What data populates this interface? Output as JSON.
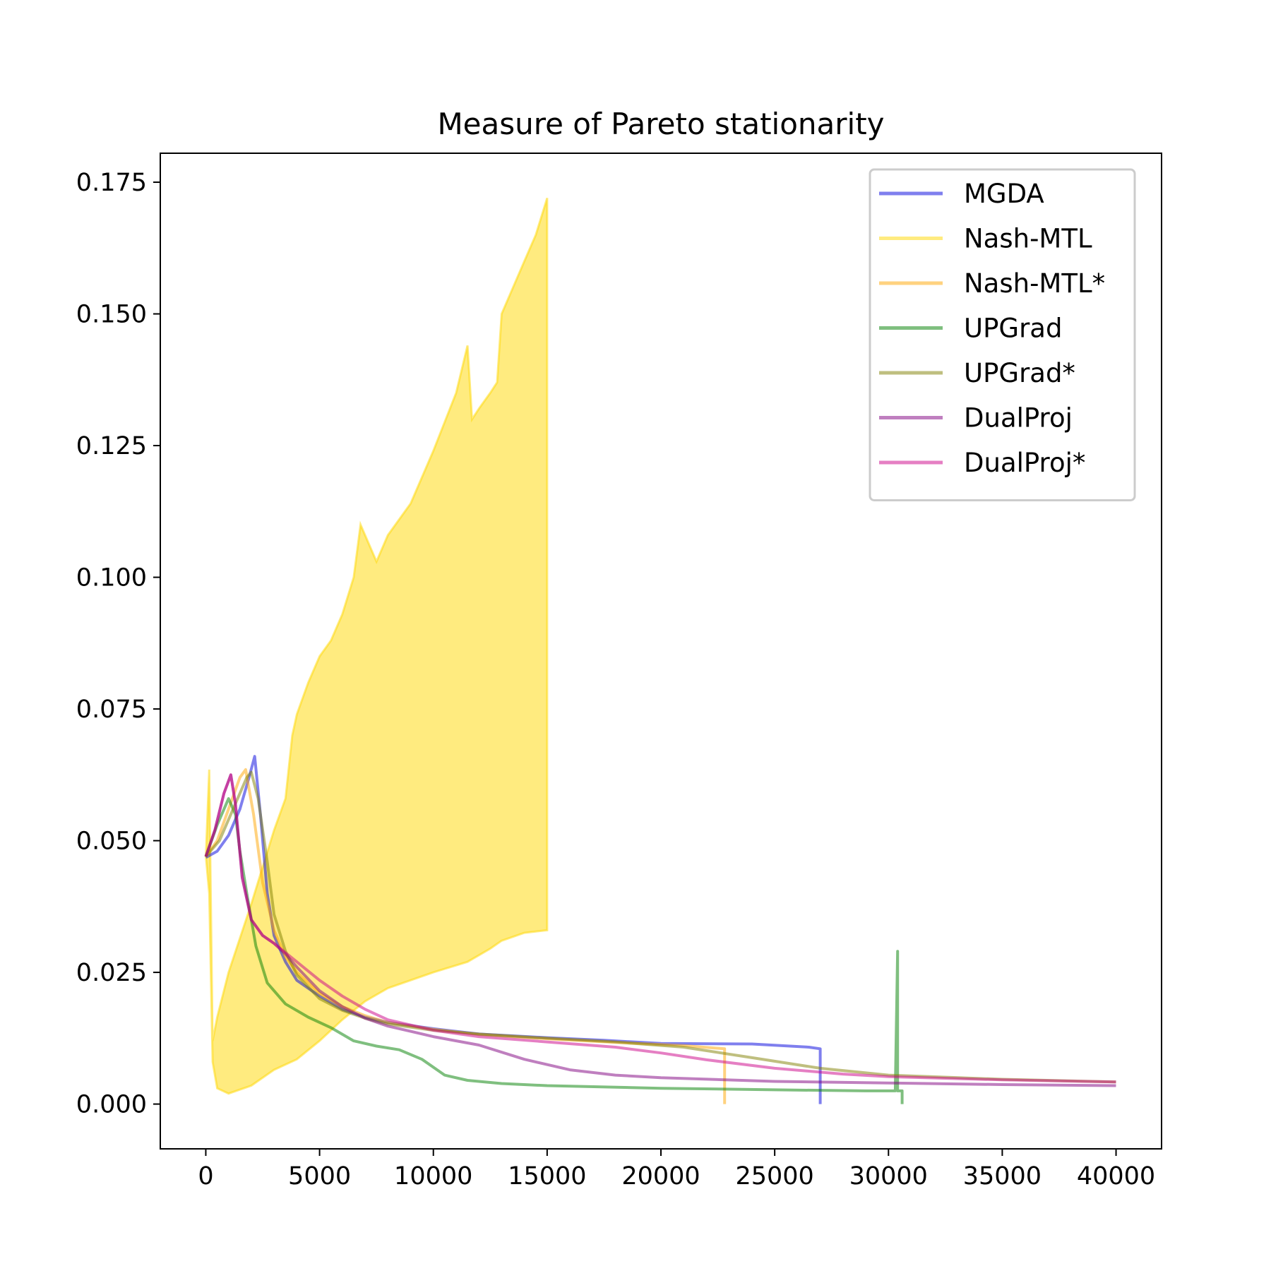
{
  "chart_data": {
    "type": "line",
    "title": "Measure of Pareto stationarity",
    "xlabel": "",
    "ylabel": "",
    "xlim": [
      -2000,
      42000
    ],
    "ylim": [
      -0.0085,
      0.1805
    ],
    "xticks": [
      0,
      5000,
      10000,
      15000,
      20000,
      25000,
      30000,
      35000,
      40000
    ],
    "xtick_labels": [
      "0",
      "5000",
      "10000",
      "15000",
      "20000",
      "25000",
      "30000",
      "35000",
      "40000"
    ],
    "yticks": [
      0.0,
      0.025,
      0.05,
      0.075,
      0.1,
      0.125,
      0.15,
      0.175
    ],
    "ytick_labels": [
      "0.000",
      "0.025",
      "0.050",
      "0.075",
      "0.100",
      "0.125",
      "0.150",
      "0.175"
    ],
    "grid": false,
    "legend": "top-right",
    "series": [
      {
        "name": "MGDA",
        "color": "#0000dd",
        "points": [
          [
            0,
            0.0468
          ],
          [
            500,
            0.048
          ],
          [
            1000,
            0.051
          ],
          [
            1500,
            0.056
          ],
          [
            1900,
            0.062
          ],
          [
            2150,
            0.066
          ],
          [
            2400,
            0.055
          ],
          [
            2700,
            0.04
          ],
          [
            3000,
            0.032
          ],
          [
            3500,
            0.027
          ],
          [
            4000,
            0.0235
          ],
          [
            5000,
            0.0205
          ],
          [
            6000,
            0.018
          ],
          [
            7000,
            0.0165
          ],
          [
            8000,
            0.0155
          ],
          [
            10000,
            0.0143
          ],
          [
            12000,
            0.0133
          ],
          [
            15000,
            0.0126
          ],
          [
            17500,
            0.0121
          ],
          [
            20000,
            0.0115
          ],
          [
            24000,
            0.0114
          ],
          [
            26500,
            0.0108
          ],
          [
            27000,
            0.0105
          ],
          [
            27000,
            0.0
          ]
        ]
      },
      {
        "name": "Nash-MTL",
        "color": "#ffd700",
        "band": true,
        "upper": [
          [
            0,
            0.047
          ],
          [
            150,
            0.0635
          ],
          [
            300,
            0.012
          ],
          [
            500,
            0.0165
          ],
          [
            1000,
            0.025
          ],
          [
            2000,
            0.038
          ],
          [
            3000,
            0.052
          ],
          [
            3500,
            0.058
          ],
          [
            3800,
            0.07
          ],
          [
            4000,
            0.074
          ],
          [
            4500,
            0.08
          ],
          [
            5000,
            0.085
          ],
          [
            5500,
            0.088
          ],
          [
            6000,
            0.093
          ],
          [
            6500,
            0.1
          ],
          [
            6800,
            0.11
          ],
          [
            7500,
            0.103
          ],
          [
            8000,
            0.108
          ],
          [
            9000,
            0.114
          ],
          [
            10000,
            0.124
          ],
          [
            11000,
            0.135
          ],
          [
            11500,
            0.144
          ],
          [
            11700,
            0.13
          ],
          [
            12000,
            0.132
          ],
          [
            12500,
            0.135
          ],
          [
            12800,
            0.137
          ],
          [
            13000,
            0.15
          ],
          [
            13500,
            0.155
          ],
          [
            14000,
            0.16
          ],
          [
            14500,
            0.165
          ],
          [
            15000,
            0.172
          ]
        ],
        "lower": [
          [
            15000,
            0.033
          ],
          [
            14000,
            0.0325
          ],
          [
            13000,
            0.031
          ],
          [
            12500,
            0.0295
          ],
          [
            11500,
            0.027
          ],
          [
            10000,
            0.025
          ],
          [
            9000,
            0.0235
          ],
          [
            8000,
            0.022
          ],
          [
            7000,
            0.0195
          ],
          [
            6000,
            0.016
          ],
          [
            5000,
            0.012
          ],
          [
            4000,
            0.0085
          ],
          [
            3000,
            0.0065
          ],
          [
            2000,
            0.0035
          ],
          [
            1000,
            0.002
          ],
          [
            500,
            0.003
          ],
          [
            300,
            0.008
          ],
          [
            150,
            0.04
          ],
          [
            0,
            0.047
          ]
        ]
      },
      {
        "name": "Nash-MTL*",
        "color": "#ffa500",
        "points": [
          [
            0,
            0.047
          ],
          [
            500,
            0.05
          ],
          [
            1000,
            0.056
          ],
          [
            1500,
            0.062
          ],
          [
            1750,
            0.0635
          ],
          [
            2100,
            0.055
          ],
          [
            2500,
            0.042
          ],
          [
            3000,
            0.033
          ],
          [
            3500,
            0.028
          ],
          [
            4000,
            0.025
          ],
          [
            5000,
            0.021
          ],
          [
            6000,
            0.0185
          ],
          [
            7000,
            0.0168
          ],
          [
            8000,
            0.0155
          ],
          [
            10000,
            0.0142
          ],
          [
            12000,
            0.0132
          ],
          [
            15000,
            0.0124
          ],
          [
            18000,
            0.0117
          ],
          [
            21000,
            0.0111
          ],
          [
            22800,
            0.0105
          ],
          [
            22800,
            0.0
          ]
        ]
      },
      {
        "name": "UPGrad",
        "color": "#008000",
        "points": [
          [
            0,
            0.047
          ],
          [
            500,
            0.053
          ],
          [
            1000,
            0.058
          ],
          [
            1300,
            0.055
          ],
          [
            1500,
            0.048
          ],
          [
            1800,
            0.04
          ],
          [
            2200,
            0.03
          ],
          [
            2700,
            0.023
          ],
          [
            3500,
            0.019
          ],
          [
            4500,
            0.0165
          ],
          [
            5500,
            0.0145
          ],
          [
            6500,
            0.012
          ],
          [
            7500,
            0.011
          ],
          [
            8500,
            0.0103
          ],
          [
            9500,
            0.0085
          ],
          [
            10500,
            0.0055
          ],
          [
            11500,
            0.0045
          ],
          [
            13000,
            0.0039
          ],
          [
            15000,
            0.0035
          ],
          [
            20000,
            0.003
          ],
          [
            25000,
            0.0027
          ],
          [
            29000,
            0.0025
          ],
          [
            30300,
            0.0025
          ],
          [
            30400,
            0.029
          ],
          [
            30400,
            0.0025
          ],
          [
            30600,
            0.0025
          ],
          [
            30600,
            0.0
          ]
        ]
      },
      {
        "name": "UPGrad*",
        "color": "#808000",
        "points": [
          [
            0,
            0.047
          ],
          [
            600,
            0.05
          ],
          [
            1200,
            0.056
          ],
          [
            1800,
            0.062
          ],
          [
            2000,
            0.063
          ],
          [
            2300,
            0.058
          ],
          [
            2700,
            0.046
          ],
          [
            3000,
            0.036
          ],
          [
            3500,
            0.029
          ],
          [
            4000,
            0.0245
          ],
          [
            5000,
            0.02
          ],
          [
            6000,
            0.0178
          ],
          [
            7000,
            0.0163
          ],
          [
            8000,
            0.0152
          ],
          [
            10000,
            0.014
          ],
          [
            12000,
            0.0133
          ],
          [
            15000,
            0.0125
          ],
          [
            18000,
            0.0118
          ],
          [
            21000,
            0.0108
          ],
          [
            24000,
            0.0088
          ],
          [
            27000,
            0.0068
          ],
          [
            30000,
            0.0055
          ],
          [
            35000,
            0.0047
          ],
          [
            40000,
            0.0042
          ]
        ]
      },
      {
        "name": "DualProj",
        "color": "#800080",
        "points": [
          [
            0,
            0.047
          ],
          [
            400,
            0.052
          ],
          [
            800,
            0.059
          ],
          [
            1100,
            0.0625
          ],
          [
            1300,
            0.057
          ],
          [
            1600,
            0.043
          ],
          [
            2000,
            0.035
          ],
          [
            2500,
            0.032
          ],
          [
            3000,
            0.0305
          ],
          [
            3500,
            0.0285
          ],
          [
            4000,
            0.026
          ],
          [
            5000,
            0.0215
          ],
          [
            6000,
            0.0185
          ],
          [
            7000,
            0.0163
          ],
          [
            8000,
            0.0148
          ],
          [
            9000,
            0.0138
          ],
          [
            10000,
            0.0128
          ],
          [
            12000,
            0.0112
          ],
          [
            14000,
            0.0085
          ],
          [
            16000,
            0.0065
          ],
          [
            18000,
            0.0055
          ],
          [
            20000,
            0.005
          ],
          [
            25000,
            0.0043
          ],
          [
            30000,
            0.004
          ],
          [
            35000,
            0.0037
          ],
          [
            40000,
            0.0035
          ]
        ]
      },
      {
        "name": "DualProj*",
        "color": "#cc0088",
        "points": [
          [
            0,
            0.047
          ],
          [
            400,
            0.052
          ],
          [
            800,
            0.059
          ],
          [
            1100,
            0.0625
          ],
          [
            1300,
            0.057
          ],
          [
            1600,
            0.043
          ],
          [
            2000,
            0.035
          ],
          [
            2500,
            0.032
          ],
          [
            3000,
            0.0305
          ],
          [
            4000,
            0.027
          ],
          [
            5000,
            0.0235
          ],
          [
            6000,
            0.0205
          ],
          [
            7000,
            0.018
          ],
          [
            8000,
            0.016
          ],
          [
            10000,
            0.014
          ],
          [
            12000,
            0.0128
          ],
          [
            15000,
            0.0118
          ],
          [
            18000,
            0.0108
          ],
          [
            20000,
            0.0097
          ],
          [
            22000,
            0.0084
          ],
          [
            25000,
            0.0068
          ],
          [
            28000,
            0.0057
          ],
          [
            30000,
            0.0052
          ],
          [
            35000,
            0.0046
          ],
          [
            40000,
            0.0042
          ]
        ]
      }
    ]
  }
}
